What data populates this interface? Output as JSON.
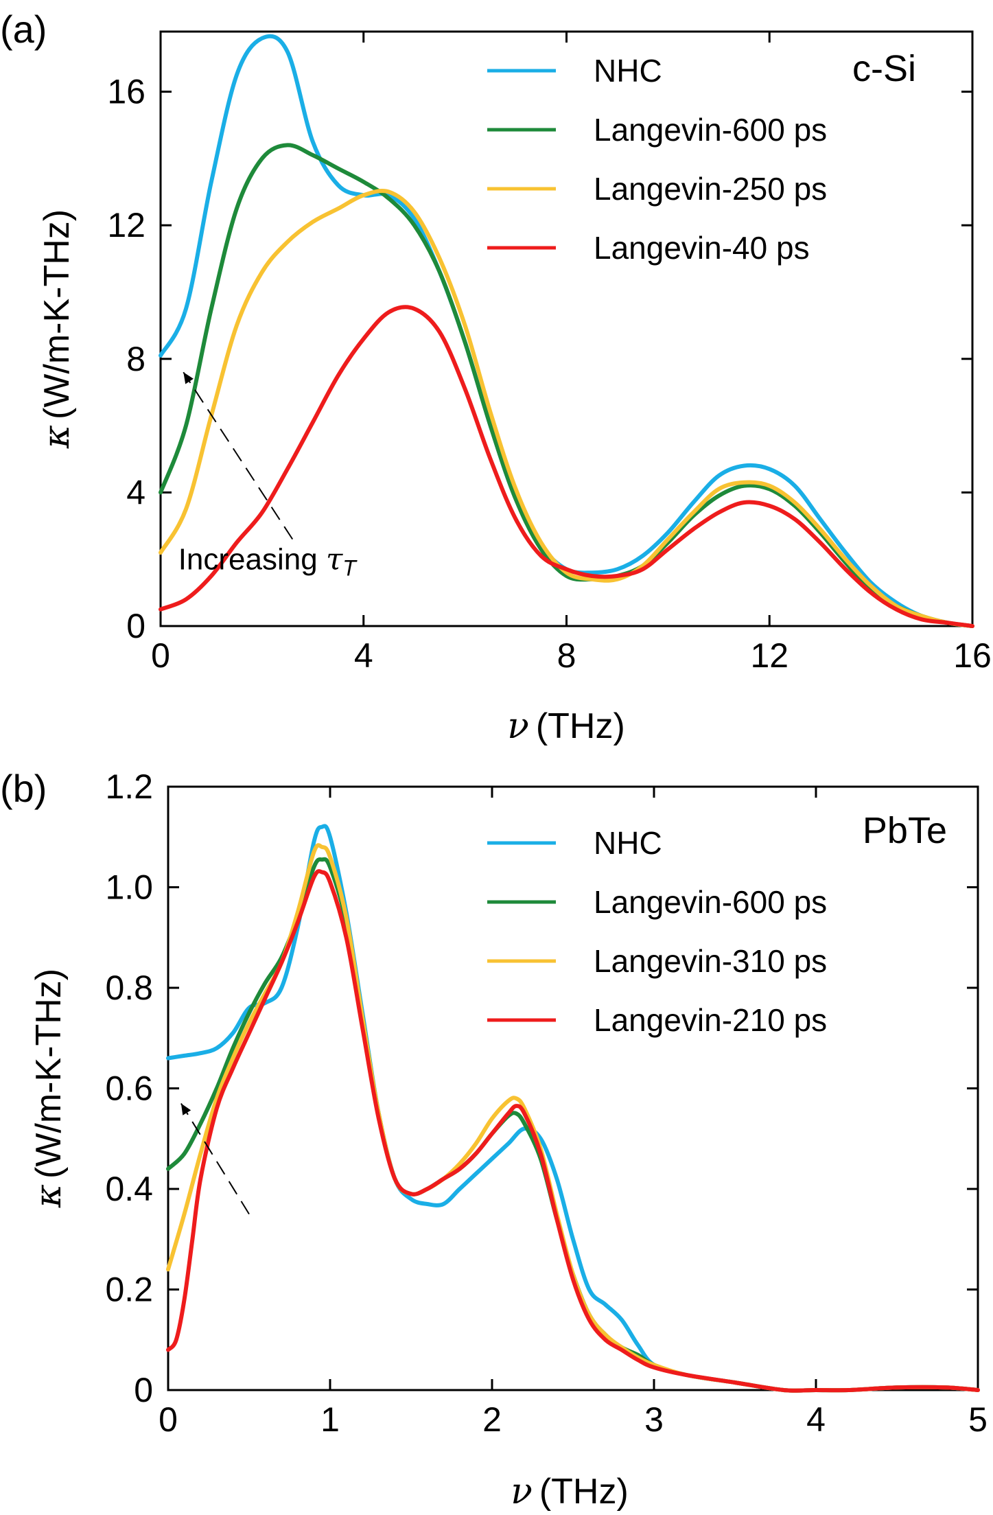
{
  "colors": {
    "NHC": "#1aaee6",
    "Langevin-600 ps": "#1e8a3a",
    "Langevin-250 ps": "#f8c232",
    "Langevin-310 ps": "#f8c232",
    "Langevin-40 ps": "#ee1c1c",
    "Langevin-210 ps": "#ee1c1c"
  },
  "chart_data": [
    {
      "type": "line",
      "panel_label": "(a)",
      "material": "c-Si",
      "xlabel_symbol": "ν",
      "xlabel_unit": "(THz)",
      "ylabel_symbol": "κ",
      "ylabel_unit": "(W/m-K-THz)",
      "xlim": [
        0,
        16
      ],
      "ylim": [
        0,
        17.8
      ],
      "xticks": [
        0,
        4,
        8,
        12,
        16
      ],
      "yticks": [
        0,
        4,
        8,
        12,
        16
      ],
      "xtick_labels": [
        "0",
        "4",
        "8",
        "12",
        "16"
      ],
      "ytick_labels": [
        "0",
        "4",
        "8",
        "12",
        "16"
      ],
      "legend_position": "top-right",
      "annotation": {
        "text": "Increasing",
        "symbol": "τ",
        "subscript": "T",
        "arrow_from": [
          2.6,
          2.6
        ],
        "arrow_to": [
          0.45,
          7.6
        ],
        "text_at": [
          2.1,
          1.7
        ]
      },
      "series": [
        {
          "name": "NHC",
          "x": [
            0,
            0.5,
            1,
            1.5,
            2,
            2.5,
            3,
            3.5,
            4,
            4.5,
            5,
            5.5,
            6,
            6.5,
            7,
            7.5,
            8,
            8.5,
            9,
            9.5,
            10,
            10.5,
            11,
            11.5,
            12,
            12.5,
            13,
            13.5,
            14,
            14.5,
            15,
            15.5,
            16
          ],
          "y": [
            8.1,
            9.5,
            13.3,
            16.5,
            17.6,
            17.2,
            14.5,
            13.2,
            12.9,
            12.9,
            12.2,
            10.6,
            8.5,
            6.0,
            3.8,
            2.4,
            1.7,
            1.6,
            1.7,
            2.1,
            2.8,
            3.7,
            4.5,
            4.8,
            4.7,
            4.2,
            3.2,
            2.2,
            1.3,
            0.7,
            0.3,
            0.1,
            0.0
          ]
        },
        {
          "name": "Langevin-600 ps",
          "x": [
            0,
            0.5,
            1,
            1.5,
            2,
            2.5,
            3,
            3.5,
            4,
            4.5,
            5,
            5.5,
            6,
            6.5,
            7,
            7.5,
            8,
            8.5,
            9,
            9.5,
            10,
            10.5,
            11,
            11.5,
            12,
            12.5,
            13,
            13.5,
            14,
            14.5,
            15,
            15.5,
            16
          ],
          "y": [
            4.0,
            6.0,
            9.5,
            12.5,
            14.0,
            14.4,
            14.1,
            13.7,
            13.3,
            12.8,
            12.0,
            10.6,
            8.5,
            6.0,
            3.8,
            2.3,
            1.5,
            1.4,
            1.5,
            1.8,
            2.5,
            3.3,
            3.9,
            4.2,
            4.1,
            3.6,
            2.8,
            1.9,
            1.1,
            0.6,
            0.3,
            0.1,
            0.0
          ]
        },
        {
          "name": "Langevin-250 ps",
          "x": [
            0,
            0.5,
            1,
            1.5,
            2,
            2.5,
            3,
            3.5,
            4,
            4.5,
            5,
            5.5,
            6,
            6.5,
            7,
            7.5,
            8,
            8.5,
            9,
            9.5,
            10,
            10.5,
            11,
            11.5,
            12,
            12.5,
            13,
            13.5,
            14,
            14.5,
            15,
            15.5,
            16
          ],
          "y": [
            2.2,
            3.5,
            6.3,
            9.0,
            10.6,
            11.5,
            12.1,
            12.5,
            12.9,
            13.0,
            12.4,
            11.0,
            9.0,
            6.4,
            4.1,
            2.5,
            1.6,
            1.4,
            1.4,
            1.8,
            2.6,
            3.4,
            4.1,
            4.3,
            4.2,
            3.7,
            2.9,
            2.0,
            1.2,
            0.6,
            0.3,
            0.1,
            0.0
          ]
        },
        {
          "name": "Langevin-40 ps",
          "x": [
            0,
            0.5,
            1,
            1.5,
            2,
            2.5,
            3,
            3.5,
            4,
            4.5,
            5,
            5.5,
            6,
            6.5,
            7,
            7.5,
            8,
            8.5,
            9,
            9.5,
            10,
            10.5,
            11,
            11.5,
            12,
            12.5,
            13,
            13.5,
            14,
            14.5,
            15,
            15.5,
            16
          ],
          "y": [
            0.5,
            0.8,
            1.5,
            2.5,
            3.4,
            4.7,
            6.1,
            7.5,
            8.6,
            9.4,
            9.5,
            8.8,
            7.1,
            5.0,
            3.2,
            2.1,
            1.7,
            1.5,
            1.5,
            1.7,
            2.3,
            2.9,
            3.4,
            3.7,
            3.6,
            3.2,
            2.5,
            1.7,
            1.0,
            0.5,
            0.2,
            0.1,
            0.0
          ]
        }
      ]
    },
    {
      "type": "line",
      "panel_label": "(b)",
      "material": "PbTe",
      "xlabel_symbol": "ν",
      "xlabel_unit": "(THz)",
      "ylabel_symbol": "κ",
      "ylabel_unit": "(W/m-K-THz)",
      "xlim": [
        0,
        5
      ],
      "ylim": [
        0,
        1.2
      ],
      "xticks": [
        0,
        1,
        2,
        3,
        4,
        5
      ],
      "yticks": [
        0,
        0.2,
        0.4,
        0.6,
        0.8,
        1.0,
        1.2
      ],
      "xtick_labels": [
        "0",
        "1",
        "2",
        "3",
        "4",
        "5"
      ],
      "ytick_labels": [
        "0",
        "0.2",
        "0.4",
        "0.6",
        "0.8",
        "1.0",
        "1.2"
      ],
      "legend_position": "top-right",
      "annotation": {
        "arrow_from": [
          0.5,
          0.35
        ],
        "arrow_to": [
          0.08,
          0.57
        ]
      },
      "series": [
        {
          "name": "NHC",
          "x": [
            0,
            0.1,
            0.2,
            0.3,
            0.4,
            0.5,
            0.6,
            0.7,
            0.8,
            0.9,
            0.95,
            1.0,
            1.1,
            1.2,
            1.3,
            1.4,
            1.5,
            1.6,
            1.7,
            1.8,
            1.9,
            2.0,
            2.1,
            2.2,
            2.3,
            2.4,
            2.5,
            2.6,
            2.7,
            2.8,
            2.9,
            3.0,
            3.2,
            3.5,
            3.8,
            4.0,
            4.2,
            4.5,
            4.8,
            5.0
          ],
          "y": [
            0.66,
            0.665,
            0.67,
            0.68,
            0.71,
            0.76,
            0.77,
            0.8,
            0.92,
            1.09,
            1.12,
            1.1,
            0.95,
            0.75,
            0.55,
            0.42,
            0.38,
            0.37,
            0.37,
            0.4,
            0.43,
            0.46,
            0.49,
            0.52,
            0.5,
            0.42,
            0.3,
            0.2,
            0.17,
            0.14,
            0.09,
            0.05,
            0.03,
            0.015,
            0.0,
            0.0,
            0.0,
            0.005,
            0.005,
            0.0
          ]
        },
        {
          "name": "Langevin-600 ps",
          "x": [
            0,
            0.1,
            0.2,
            0.3,
            0.4,
            0.5,
            0.6,
            0.7,
            0.8,
            0.9,
            0.95,
            1.0,
            1.1,
            1.2,
            1.3,
            1.4,
            1.5,
            1.6,
            1.7,
            1.8,
            1.9,
            2.0,
            2.1,
            2.15,
            2.2,
            2.3,
            2.4,
            2.5,
            2.6,
            2.7,
            2.8,
            2.9,
            3.0,
            3.2,
            3.5,
            3.8,
            4.0,
            4.2,
            4.5,
            4.8,
            5.0
          ],
          "y": [
            0.44,
            0.47,
            0.53,
            0.6,
            0.68,
            0.75,
            0.81,
            0.86,
            0.94,
            1.04,
            1.055,
            1.04,
            0.93,
            0.74,
            0.55,
            0.42,
            0.39,
            0.4,
            0.42,
            0.44,
            0.47,
            0.51,
            0.545,
            0.55,
            0.53,
            0.46,
            0.34,
            0.23,
            0.15,
            0.11,
            0.085,
            0.07,
            0.05,
            0.03,
            0.015,
            0.0,
            0.0,
            0.0,
            0.005,
            0.005,
            0.0
          ]
        },
        {
          "name": "Langevin-310 ps",
          "x": [
            0,
            0.1,
            0.2,
            0.3,
            0.4,
            0.5,
            0.6,
            0.7,
            0.8,
            0.9,
            0.95,
            1.0,
            1.1,
            1.2,
            1.3,
            1.4,
            1.5,
            1.6,
            1.7,
            1.8,
            1.9,
            2.0,
            2.1,
            2.15,
            2.2,
            2.3,
            2.4,
            2.5,
            2.6,
            2.7,
            2.8,
            2.9,
            3.0,
            3.2,
            3.5,
            3.8,
            4.0,
            4.2,
            4.5,
            4.8,
            5.0
          ],
          "y": [
            0.24,
            0.35,
            0.47,
            0.58,
            0.66,
            0.73,
            0.79,
            0.85,
            0.95,
            1.07,
            1.08,
            1.06,
            0.94,
            0.74,
            0.55,
            0.42,
            0.39,
            0.4,
            0.42,
            0.45,
            0.49,
            0.54,
            0.575,
            0.58,
            0.56,
            0.48,
            0.35,
            0.23,
            0.15,
            0.11,
            0.085,
            0.065,
            0.05,
            0.03,
            0.015,
            0.0,
            0.0,
            0.0,
            0.005,
            0.005,
            0.0
          ]
        },
        {
          "name": "Langevin-210 ps",
          "x": [
            0,
            0.05,
            0.1,
            0.15,
            0.2,
            0.3,
            0.4,
            0.5,
            0.6,
            0.7,
            0.8,
            0.9,
            0.95,
            1.0,
            1.1,
            1.2,
            1.3,
            1.4,
            1.5,
            1.6,
            1.7,
            1.8,
            1.9,
            2.0,
            2.1,
            2.15,
            2.2,
            2.3,
            2.4,
            2.5,
            2.6,
            2.7,
            2.8,
            2.9,
            3.0,
            3.2,
            3.5,
            3.8,
            4.0,
            4.2,
            4.5,
            4.8,
            5.0
          ],
          "y": [
            0.08,
            0.1,
            0.18,
            0.3,
            0.42,
            0.56,
            0.64,
            0.71,
            0.78,
            0.85,
            0.93,
            1.02,
            1.03,
            1.01,
            0.9,
            0.72,
            0.54,
            0.42,
            0.39,
            0.4,
            0.42,
            0.44,
            0.47,
            0.51,
            0.55,
            0.565,
            0.55,
            0.47,
            0.34,
            0.22,
            0.14,
            0.1,
            0.08,
            0.06,
            0.045,
            0.03,
            0.015,
            0.0,
            0.0,
            0.0,
            0.005,
            0.005,
            0.0
          ]
        }
      ]
    }
  ]
}
